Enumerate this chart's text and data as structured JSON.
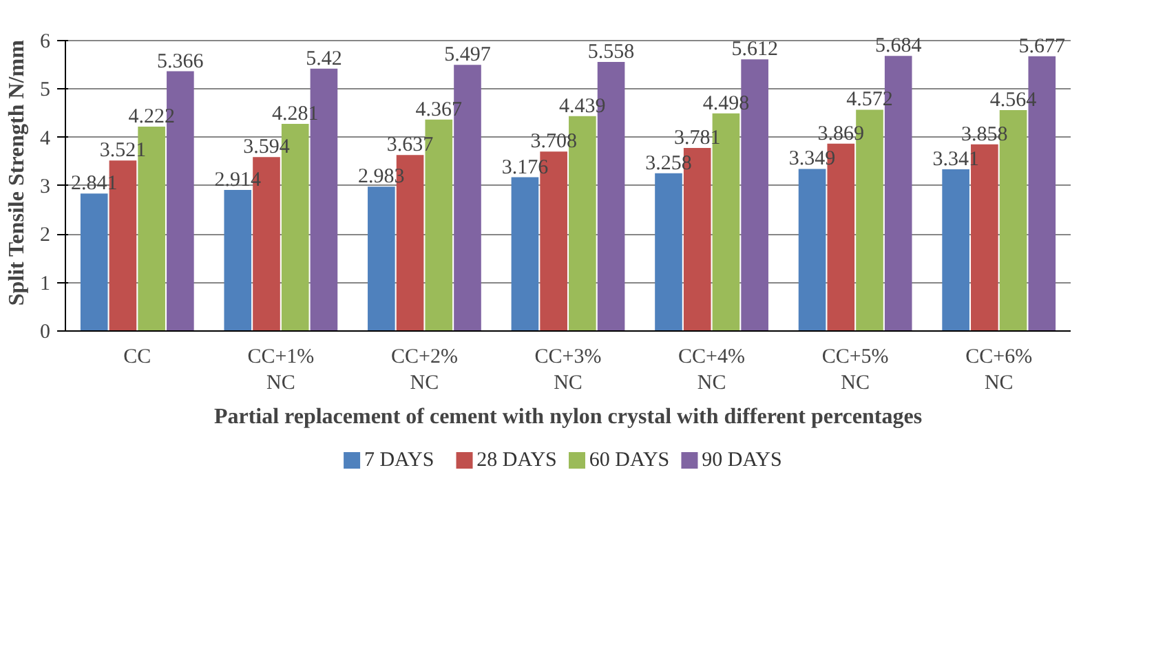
{
  "chart_data": {
    "type": "bar",
    "xlabel": "Partial replacement of cement with nylon crystal with different percentages",
    "ylabel": "Split Tensile Strength N/mm",
    "categories": [
      "CC",
      "CC+1%\nNC",
      "CC+2%\nNC",
      "CC+3%\nNC",
      "CC+4%\nNC",
      "CC+5%\nNC",
      "CC+6%\nNC"
    ],
    "series": [
      {
        "name": "7 DAYS",
        "color": "#4f81bd",
        "values": [
          2.841,
          2.914,
          2.983,
          3.176,
          3.258,
          3.349,
          3.341
        ]
      },
      {
        "name": "28 DAYS",
        "color": "#c0504d",
        "values": [
          3.521,
          3.594,
          3.637,
          3.708,
          3.781,
          3.869,
          3.858
        ]
      },
      {
        "name": "60 DAYS",
        "color": "#9bbb59",
        "values": [
          4.222,
          4.281,
          4.367,
          4.439,
          4.498,
          4.572,
          4.564
        ]
      },
      {
        "name": "90 DAYS",
        "color": "#8064a2",
        "values": [
          5.366,
          5.42,
          5.497,
          5.558,
          5.612,
          5.684,
          5.677
        ]
      }
    ],
    "ylim": [
      0,
      6
    ],
    "yticks": [
      0,
      1,
      2,
      3,
      4,
      5,
      6
    ],
    "grid": "y",
    "legend": "bottom",
    "data_labels": true
  }
}
